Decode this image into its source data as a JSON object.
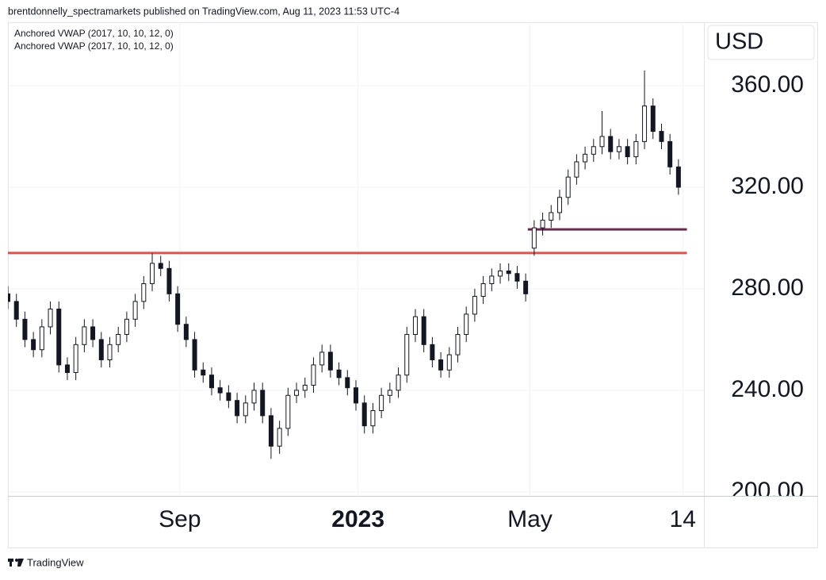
{
  "header": {
    "byline": "brentdonnelly_spectramarkets published on TradingView.com, Aug 11, 2023 11:53 UTC-4"
  },
  "footer": {
    "brand": "TradingView"
  },
  "chart_data": {
    "type": "candlestick",
    "y_axis_label": "USD",
    "xlim": [
      0,
      328
    ],
    "xticks": [
      {
        "value": 81,
        "label": "Sep"
      },
      {
        "value": 165,
        "label": "2023",
        "bold": true
      },
      {
        "value": 246,
        "label": "May"
      },
      {
        "value": 318,
        "label": "14"
      }
    ],
    "ylim": [
      198.4,
      385
    ],
    "yticks": [
      {
        "value": 200,
        "label": "200.00"
      },
      {
        "value": 240,
        "label": "240.00"
      },
      {
        "value": 280,
        "label": "280.00"
      },
      {
        "value": 320,
        "label": "320.00"
      },
      {
        "value": 360,
        "label": "360.00"
      }
    ],
    "grid": true,
    "candle_color": "#131722",
    "candle_body": "#ffffff",
    "x": [
      0,
      4,
      8,
      12,
      16,
      20,
      24,
      28,
      32,
      36,
      40,
      44,
      48,
      52,
      56,
      60,
      64,
      68,
      72,
      76,
      80,
      84,
      88,
      92,
      96,
      100,
      104,
      108,
      112,
      116,
      120,
      124,
      128,
      132,
      136,
      140,
      144,
      148,
      152,
      156,
      160,
      164,
      168,
      172,
      176,
      180,
      184,
      188,
      192,
      196,
      200,
      204,
      208,
      212,
      216,
      220,
      224,
      228,
      232,
      236,
      240,
      244,
      248,
      252,
      256,
      260,
      264,
      268,
      272,
      276,
      280,
      284,
      288,
      292,
      296,
      300,
      304,
      308,
      312,
      316
    ],
    "open": [
      278,
      275,
      268,
      260,
      256,
      265,
      272,
      250,
      247,
      258,
      265,
      260,
      252,
      258,
      262,
      268,
      275,
      282,
      290,
      288,
      278,
      266,
      260,
      248,
      246,
      241,
      239,
      236,
      230,
      235,
      240,
      230,
      218,
      225,
      238,
      240,
      242,
      250,
      255,
      248,
      245,
      241,
      235,
      226,
      232,
      238,
      240,
      246,
      262,
      269,
      258,
      252,
      248,
      254,
      262,
      270,
      277,
      282,
      285,
      287,
      286,
      283,
      296,
      304,
      307,
      310,
      316,
      324,
      330,
      333,
      336,
      340,
      334,
      336,
      332,
      338,
      352,
      342,
      338,
      328
    ],
    "high": [
      281,
      278,
      271,
      263,
      268,
      275,
      275,
      253,
      261,
      268,
      268,
      263,
      261,
      265,
      271,
      278,
      285,
      294,
      293,
      291,
      281,
      269,
      263,
      251,
      249,
      244,
      242,
      239,
      238,
      243,
      243,
      233,
      228,
      241,
      243,
      245,
      253,
      258,
      258,
      251,
      248,
      244,
      238,
      235,
      241,
      243,
      249,
      265,
      272,
      272,
      261,
      255,
      257,
      265,
      273,
      280,
      285,
      288,
      290,
      290,
      289,
      286,
      307,
      310,
      313,
      319,
      327,
      333,
      336,
      339,
      350,
      343,
      339,
      339,
      341,
      366,
      355,
      345,
      341,
      331
    ],
    "low": [
      272,
      265,
      257,
      253,
      253,
      262,
      247,
      244,
      244,
      255,
      257,
      249,
      249,
      255,
      259,
      265,
      272,
      279,
      285,
      275,
      263,
      257,
      245,
      243,
      238,
      236,
      233,
      227,
      227,
      232,
      227,
      213,
      215,
      222,
      235,
      237,
      239,
      247,
      245,
      242,
      238,
      232,
      223,
      223,
      229,
      235,
      237,
      243,
      259,
      255,
      249,
      245,
      245,
      251,
      259,
      267,
      274,
      279,
      282,
      283,
      280,
      275,
      293,
      301,
      304,
      307,
      313,
      321,
      327,
      330,
      333,
      331,
      331,
      329,
      329,
      335,
      339,
      335,
      325,
      317
    ],
    "close": [
      275,
      268,
      260,
      256,
      265,
      272,
      250,
      247,
      258,
      265,
      260,
      252,
      258,
      262,
      268,
      275,
      282,
      290,
      288,
      278,
      266,
      260,
      248,
      246,
      241,
      239,
      236,
      230,
      235,
      240,
      230,
      218,
      225,
      238,
      240,
      242,
      250,
      255,
      248,
      245,
      241,
      235,
      226,
      232,
      238,
      240,
      246,
      262,
      269,
      258,
      252,
      248,
      254,
      262,
      270,
      277,
      282,
      285,
      287,
      286,
      283,
      278,
      304,
      307,
      310,
      316,
      324,
      330,
      333,
      336,
      340,
      334,
      336,
      332,
      338,
      352,
      342,
      338,
      328,
      320
    ],
    "levels": [
      {
        "name": "Anchored VWAP (2017, 10, 10, 12, 0)",
        "color": "#d9534f",
        "value": 294.1,
        "x_start": 0,
        "x_end": 320
      },
      {
        "name": "Anchored VWAP (2017, 10, 10, 12, 0)",
        "color": "#6b2a4f",
        "value": 303.4,
        "x_start": 245,
        "x_end": 320
      }
    ]
  }
}
